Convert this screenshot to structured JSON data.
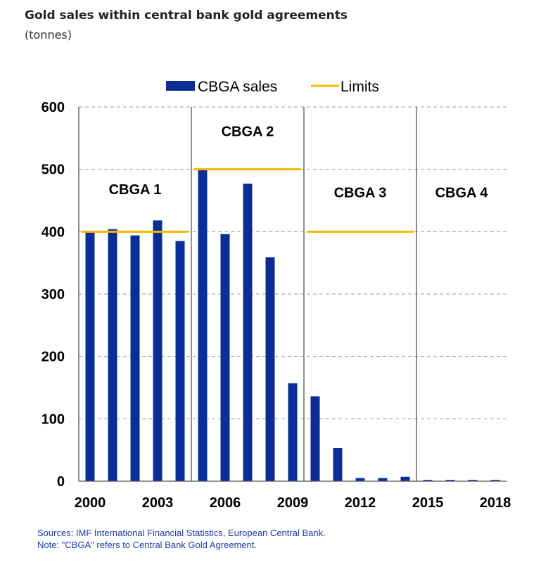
{
  "header": {
    "title": "Gold sales within central bank gold agreements",
    "subtitle": "(tonnes)"
  },
  "footer": {
    "sources": "Sources: IMF International Financial Statistics, European Central Bank.",
    "note": "Note: \"CBGA\" refers to Central Bank Gold Agreement."
  },
  "colors": {
    "bars": "#0b2d96",
    "limits": "#f5b800",
    "grid": "#9a9a9a",
    "text": "#000000",
    "footer": "#1f3c9e"
  },
  "chart_data": {
    "type": "bar",
    "title": "Gold sales within central bank gold agreements",
    "ylabel": "tonnes",
    "ylim": [
      0,
      600
    ],
    "yticks": [
      0,
      100,
      200,
      300,
      400,
      500,
      600
    ],
    "xticks": [
      "2000",
      "2003",
      "2006",
      "2009",
      "2012",
      "2015",
      "2018"
    ],
    "categories": [
      "2000",
      "2001",
      "2002",
      "2003",
      "2004",
      "2005",
      "2006",
      "2007",
      "2008",
      "2009",
      "2010",
      "2011",
      "2012",
      "2013",
      "2014",
      "2015",
      "2016",
      "2017",
      "2018"
    ],
    "series": [
      {
        "name": "CBGA sales",
        "type": "bar",
        "values": [
          400,
          404,
          394,
          418,
          385,
          499,
          396,
          477,
          359,
          157,
          136,
          53,
          5,
          5,
          7,
          2,
          2,
          2,
          2
        ]
      },
      {
        "name": "Limits",
        "type": "line-segments",
        "segments": [
          {
            "from": "2000",
            "to": "2004",
            "value": 400
          },
          {
            "from": "2005",
            "to": "2009",
            "value": 500
          },
          {
            "from": "2010",
            "to": "2014",
            "value": 400
          }
        ]
      }
    ],
    "legend": [
      "CBGA sales",
      "Limits"
    ],
    "legend_position": "top-center",
    "periods": [
      {
        "label": "CBGA 1",
        "from": "2000",
        "to": "2004",
        "label_level": 460
      },
      {
        "label": "CBGA 2",
        "from": "2005",
        "to": "2009",
        "label_level": 553
      },
      {
        "label": "CBGA 3",
        "from": "2010",
        "to": "2014",
        "label_level": 455
      },
      {
        "label": "CBGA 4",
        "from": "2015",
        "to": "2018",
        "label_level": 455
      }
    ]
  }
}
